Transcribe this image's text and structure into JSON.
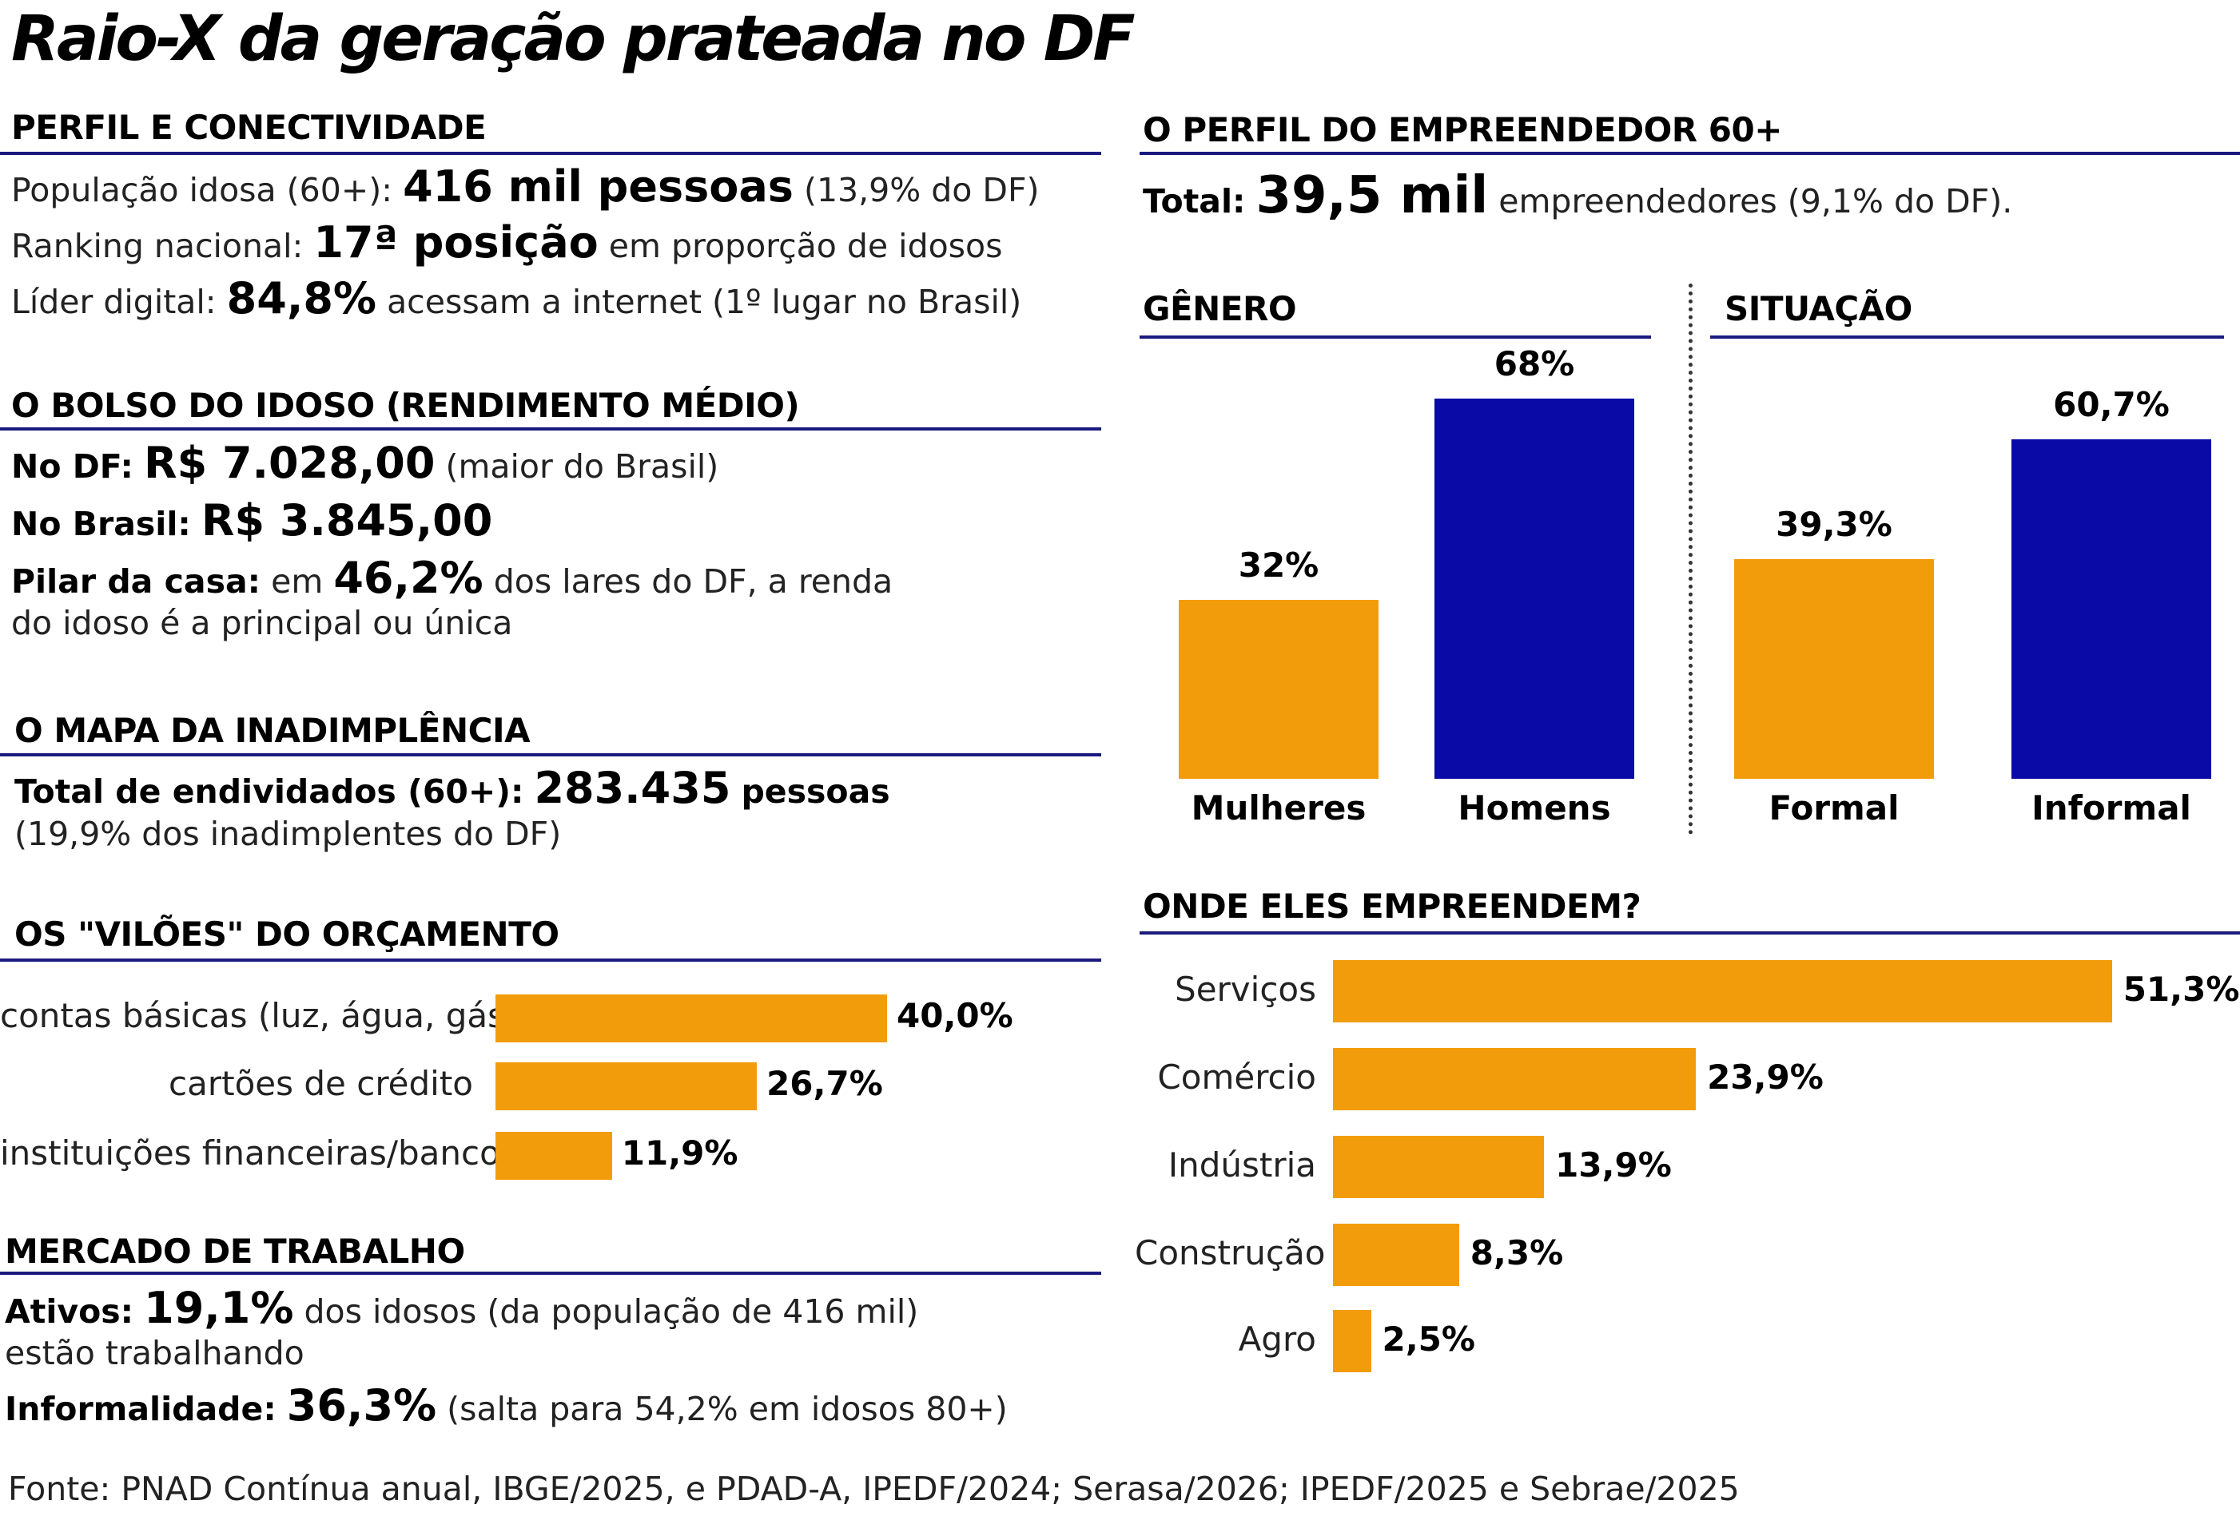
{
  "title": "Raio-X da geração prateada no DF",
  "perfil": {
    "heading": "PERFIL E CONECTIVIDADE",
    "l1_a": "População idosa (60+):",
    "l1_b": "416 mil pessoas",
    "l1_c": "(13,9% do DF)",
    "l2_a": "Ranking nacional:",
    "l2_b": "17ª posição",
    "l2_c": "em proporção de idosos",
    "l3_a": "Líder digital:",
    "l3_b": "84,8%",
    "l3_c": "acessam a internet (1º lugar no Brasil)"
  },
  "bolso": {
    "heading": "O BOLSO DO IDOSO (RENDIMENTO MÉDIO)",
    "l1_a": "No DF:",
    "l1_b": "R$ 7.028,00",
    "l1_c": "(maior do Brasil)",
    "l2_a": "No Brasil:",
    "l2_b": "R$ 3.845,00",
    "l3_a": "Pilar da casa:",
    "l3_b": "em",
    "l3_c": "46,2%",
    "l3_d": "dos lares do DF, a renda",
    "l4": "do idoso é a principal ou única"
  },
  "mapa": {
    "heading": "O MAPA DA INADIMPLÊNCIA",
    "l1_a": "Total de endividados (60+):",
    "l1_b": "283.435",
    "l1_c": "pessoas",
    "l2": "(19,9% dos inadimplentes do DF)"
  },
  "viloes": {
    "heading": "OS \"VILÕES\" DO ORÇAMENTO"
  },
  "mercado": {
    "heading": "MERCADO DE TRABALHO",
    "l1_a": "Ativos:",
    "l1_b": "19,1%",
    "l1_c": "dos idosos (da população de 416 mil)",
    "l2": "estão trabalhando",
    "l3_a": "Informalidade:",
    "l3_b": "36,3%",
    "l3_c": "(salta para 54,2% em idosos 80+)"
  },
  "empreendedor": {
    "heading": "O PERFIL DO EMPREENDEDOR 60+",
    "total_a": "Total:",
    "total_b": "39,5 mil",
    "total_c": "empreendedores (9,1% do DF)."
  },
  "footer": "Fonte: PNAD Contínua anual, IBGE/2025, e PDAD-A, IPEDF/2024; Serasa/2026; IPEDF/2025 e Sebrae/2025",
  "colors": {
    "orange": "#f39c0b",
    "blue": "#0a0aa6",
    "rule": "#1a1a7e"
  },
  "chart_data": [
    {
      "type": "bar",
      "orientation": "horizontal",
      "title": "OS \"VILÕES\" DO ORÇAMENTO",
      "categories": [
        "contas básicas (luz, água, gás)",
        "cartões de crédito",
        "instituições financeiras/bancos"
      ],
      "values": [
        40.0,
        26.7,
        11.9
      ],
      "value_labels": [
        "40,0%",
        "26,7%",
        "11,9%"
      ],
      "unit": "%",
      "color": "#f39c0b"
    },
    {
      "type": "bar",
      "title": "GÊNERO",
      "categories": [
        "Mulheres",
        "Homens"
      ],
      "values": [
        32,
        68
      ],
      "value_labels": [
        "32%",
        "68%"
      ],
      "colors": [
        "#f39c0b",
        "#0a0aa6"
      ]
    },
    {
      "type": "bar",
      "title": "SITUAÇÃO",
      "categories": [
        "Formal",
        "Informal"
      ],
      "values": [
        39.3,
        60.7
      ],
      "value_labels": [
        "39,3%",
        "60,7%"
      ],
      "colors": [
        "#f39c0b",
        "#0a0aa6"
      ]
    },
    {
      "type": "bar",
      "orientation": "horizontal",
      "title": "ONDE ELES EMPREENDEM?",
      "categories": [
        "Serviços",
        "Comércio",
        "Indústria",
        "Construção",
        "Agro"
      ],
      "values": [
        51.3,
        23.9,
        13.9,
        8.3,
        2.5
      ],
      "value_labels": [
        "51,3%",
        "23,9%",
        "13,9%",
        "8,3%",
        "2,5%"
      ],
      "color": "#f39c0b"
    }
  ]
}
